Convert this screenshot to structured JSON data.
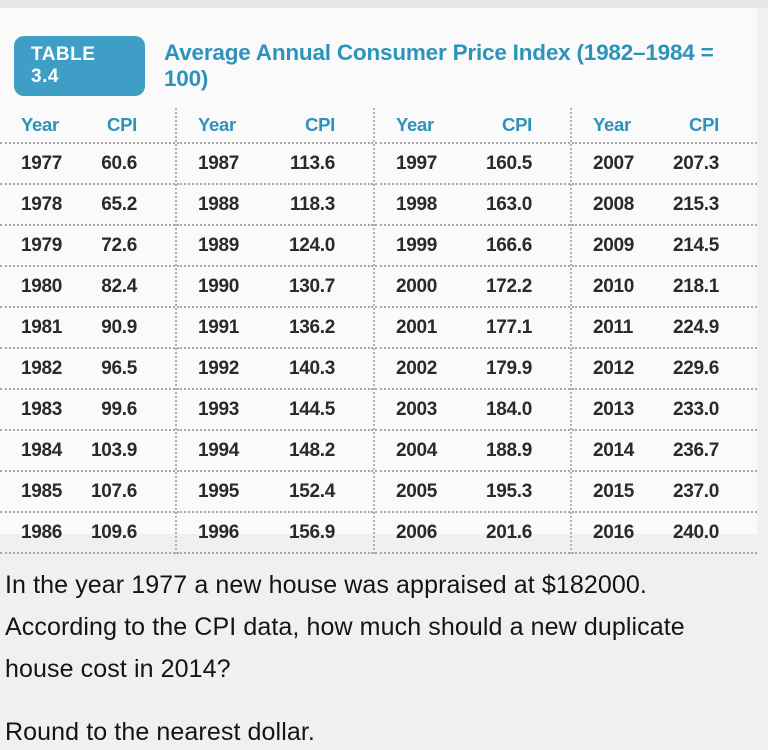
{
  "colors": {
    "accent_text": "#2d93bb",
    "badge_bg": "#3e9ec6",
    "page_bg": "#f0f0f1",
    "panel_bg": "#fafafa",
    "row_text": "#2a2a2a",
    "dotted_line": "#a8a8a8"
  },
  "table": {
    "badge_label": "TABLE 3.4",
    "title": "Average Annual Consumer Price Index (1982–1984 = 100)",
    "col_headers": {
      "year": "Year",
      "cpi": "CPI"
    },
    "groups": [
      {
        "rows": [
          {
            "year": "1977",
            "cpi": "60.6"
          },
          {
            "year": "1978",
            "cpi": "65.2"
          },
          {
            "year": "1979",
            "cpi": "72.6"
          },
          {
            "year": "1980",
            "cpi": "82.4"
          },
          {
            "year": "1981",
            "cpi": "90.9"
          },
          {
            "year": "1982",
            "cpi": "96.5"
          },
          {
            "year": "1983",
            "cpi": "99.6"
          },
          {
            "year": "1984",
            "cpi": "103.9"
          },
          {
            "year": "1985",
            "cpi": "107.6"
          },
          {
            "year": "1986",
            "cpi": "109.6"
          }
        ]
      },
      {
        "rows": [
          {
            "year": "1987",
            "cpi": "113.6"
          },
          {
            "year": "1988",
            "cpi": "118.3"
          },
          {
            "year": "1989",
            "cpi": "124.0"
          },
          {
            "year": "1990",
            "cpi": "130.7"
          },
          {
            "year": "1991",
            "cpi": "136.2"
          },
          {
            "year": "1992",
            "cpi": "140.3"
          },
          {
            "year": "1993",
            "cpi": "144.5"
          },
          {
            "year": "1994",
            "cpi": "148.2"
          },
          {
            "year": "1995",
            "cpi": "152.4"
          },
          {
            "year": "1996",
            "cpi": "156.9"
          }
        ]
      },
      {
        "rows": [
          {
            "year": "1997",
            "cpi": "160.5"
          },
          {
            "year": "1998",
            "cpi": "163.0"
          },
          {
            "year": "1999",
            "cpi": "166.6"
          },
          {
            "year": "2000",
            "cpi": "172.2"
          },
          {
            "year": "2001",
            "cpi": "177.1"
          },
          {
            "year": "2002",
            "cpi": "179.9"
          },
          {
            "year": "2003",
            "cpi": "184.0"
          },
          {
            "year": "2004",
            "cpi": "188.9"
          },
          {
            "year": "2005",
            "cpi": "195.3"
          },
          {
            "year": "2006",
            "cpi": "201.6"
          }
        ]
      },
      {
        "rows": [
          {
            "year": "2007",
            "cpi": "207.3"
          },
          {
            "year": "2008",
            "cpi": "215.3"
          },
          {
            "year": "2009",
            "cpi": "214.5"
          },
          {
            "year": "2010",
            "cpi": "218.1"
          },
          {
            "year": "2011",
            "cpi": "224.9"
          },
          {
            "year": "2012",
            "cpi": "229.6"
          },
          {
            "year": "2013",
            "cpi": "233.0"
          },
          {
            "year": "2014",
            "cpi": "236.7"
          },
          {
            "year": "2015",
            "cpi": "237.0"
          },
          {
            "year": "2016",
            "cpi": "240.0"
          }
        ]
      }
    ]
  },
  "question": {
    "text": "In the year 1977 a new house was appraised at $182000. According to the CPI data, how much should a new duplicate house cost in 2014?",
    "note": "Round to the nearest dollar."
  }
}
